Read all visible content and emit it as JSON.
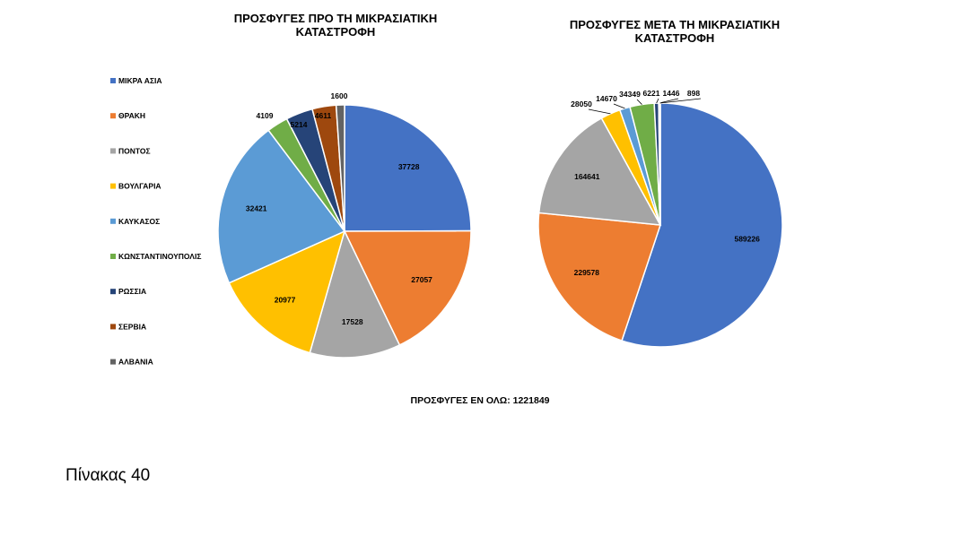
{
  "slide": {
    "total_label": "ΠΡΟΣΦΥΓΕΣ ΕΝ ΟΛΩ: 1221849",
    "caption": "Πίνακας 40"
  },
  "chart_data": [
    {
      "type": "pie",
      "title": "ΠΡΟΣΦΥΓΕΣ ΠΡΟ ΤΗ ΜΙΚΡΑΣΙΑΤΙΚΗ ΚΑΤΑΣΤΡΟΦΗ",
      "title_lines": [
        "ΠΡΟΣΦΥΓΕΣ ΠΡΟ ΤΗ ΜΙΚΡΑΣΙΑΤΙΚΗ",
        "ΚΑΤΑΣΤΡΟΦΗ"
      ],
      "legend_position": "left",
      "categories": [
        "ΜΙΚΡΑ ΑΣΙΑ",
        "ΘΡΑΚΗ",
        "ΠΟΝΤΟΣ",
        "ΒΟΥΛΓΑΡΙΑ",
        "ΚΑΥΚΑΣΟΣ",
        "ΚΩΝΣΤΑΝΤΙΝΟΥΠΟΛΙΣ",
        "ΡΩΣΣΙΑ",
        "ΣΕΡΒΙΑ",
        "ΑΛΒΑΝΙΑ"
      ],
      "values": [
        37728,
        27057,
        17528,
        20977,
        32421,
        4109,
        5214,
        4611,
        1600
      ],
      "colors": [
        "#4472C4",
        "#ED7D31",
        "#A5A5A5",
        "#FFC000",
        "#5B9BD5",
        "#70AD47",
        "#264478",
        "#9E480E",
        "#636363"
      ]
    },
    {
      "type": "pie",
      "title": "ΠΡΟΣΦΥΓΕΣ ΜΕΤΑ ΤΗ ΜΙΚΡΑΣΙΑΤΙΚΗ ΚΑΤΑΣΤΡΟΦΗ",
      "title_lines": [
        "ΠΡΟΣΦΥΓΕΣ ΜΕΤΑ ΤΗ ΜΙΚΡΑΣΙΑΤΙΚΗ",
        "ΚΑΤΑΣΤΡΟΦΗ"
      ],
      "categories": [
        "ΜΙΚΡΑ ΑΣΙΑ",
        "ΘΡΑΚΗ",
        "ΠΟΝΤΟΣ",
        "ΒΟΥΛΓΑΡΙΑ",
        "ΚΑΥΚΑΣΟΣ",
        "ΚΩΝΣΤΑΝΤΙΝΟΥΠΟΛΙΣ",
        "ΡΩΣΣΙΑ",
        "ΣΕΡΒΙΑ",
        "ΑΛΒΑΝΙΑ"
      ],
      "values": [
        589226,
        229578,
        164641,
        28050,
        14670,
        34349,
        6221,
        1446,
        898
      ],
      "colors": [
        "#4472C4",
        "#ED7D31",
        "#A5A5A5",
        "#FFC000",
        "#5B9BD5",
        "#70AD47",
        "#264478",
        "#9E480E",
        "#636363"
      ]
    }
  ]
}
